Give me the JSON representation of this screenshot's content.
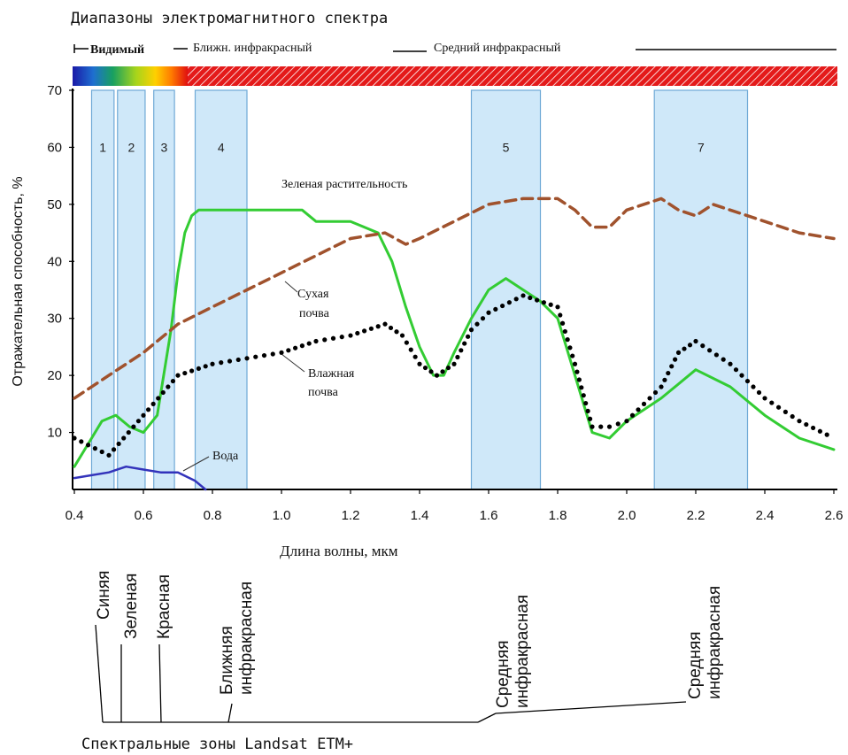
{
  "title": "Диапазоны электромагнитного спектра",
  "spectrum_ranges": [
    {
      "label": "Видимый"
    },
    {
      "label": "Ближн. инфракрасный"
    },
    {
      "label": "Средний инфракрасный"
    }
  ],
  "chart_data": {
    "type": "line",
    "xlabel": "Длина волны, мкм",
    "ylabel": "Отражательная способность, %",
    "xlim": [
      0.4,
      2.6
    ],
    "ylim": [
      0,
      70
    ],
    "x_ticks": [
      "0.4",
      "0.6",
      "0.8",
      "1.0",
      "1.2",
      "1.4",
      "1.6",
      "1.8",
      "2.0",
      "2.2",
      "2.4",
      "2.6"
    ],
    "y_ticks": [
      "10",
      "20",
      "30",
      "40",
      "50",
      "60",
      "70"
    ],
    "bands": [
      {
        "label": "1",
        "x0": 0.45,
        "x1": 0.515
      },
      {
        "label": "2",
        "x0": 0.525,
        "x1": 0.605
      },
      {
        "label": "3",
        "x0": 0.63,
        "x1": 0.69
      },
      {
        "label": "4",
        "x0": 0.75,
        "x1": 0.9
      },
      {
        "label": "5",
        "x0": 1.55,
        "x1": 1.75
      },
      {
        "label": "7",
        "x0": 2.08,
        "x1": 2.35
      }
    ],
    "series": [
      {
        "name": "Зеленая растительность",
        "color": "#33cc33",
        "x": [
          0.4,
          0.44,
          0.48,
          0.52,
          0.56,
          0.6,
          0.64,
          0.68,
          0.7,
          0.72,
          0.74,
          0.76,
          0.8,
          0.9,
          1.0,
          1.06,
          1.1,
          1.2,
          1.28,
          1.32,
          1.36,
          1.4,
          1.44,
          1.47,
          1.5,
          1.55,
          1.6,
          1.65,
          1.7,
          1.75,
          1.8,
          1.85,
          1.9,
          1.95,
          2.0,
          2.1,
          2.2,
          2.3,
          2.4,
          2.5,
          2.6
        ],
        "y": [
          4,
          8,
          12,
          13,
          11,
          10,
          13,
          28,
          38,
          45,
          48,
          49,
          49,
          49,
          49,
          49,
          47,
          47,
          45,
          40,
          32,
          25,
          20,
          20,
          24,
          30,
          35,
          37,
          35,
          33,
          30,
          20,
          10,
          9,
          12,
          16,
          21,
          18,
          13,
          9,
          7
        ]
      },
      {
        "name": "Сухая почва",
        "color": "#a0522d",
        "x": [
          0.4,
          0.5,
          0.6,
          0.7,
          0.8,
          0.9,
          1.0,
          1.1,
          1.2,
          1.3,
          1.36,
          1.4,
          1.5,
          1.6,
          1.7,
          1.8,
          1.85,
          1.9,
          1.95,
          2.0,
          2.1,
          2.15,
          2.2,
          2.25,
          2.3,
          2.4,
          2.5,
          2.6
        ],
        "y": [
          16,
          20,
          24,
          29,
          32,
          35,
          38,
          41,
          44,
          45,
          43,
          44,
          47,
          50,
          51,
          51,
          49,
          46,
          46,
          49,
          51,
          49,
          48,
          50,
          49,
          47,
          45,
          44
        ]
      },
      {
        "name": "Влажная почва",
        "color": "#000000",
        "x": [
          0.4,
          0.5,
          0.6,
          0.7,
          0.8,
          0.9,
          1.0,
          1.1,
          1.2,
          1.3,
          1.35,
          1.4,
          1.45,
          1.5,
          1.55,
          1.6,
          1.7,
          1.8,
          1.85,
          1.9,
          1.95,
          2.0,
          2.1,
          2.15,
          2.2,
          2.3,
          2.4,
          2.5,
          2.6
        ],
        "y": [
          9,
          6,
          13,
          20,
          22,
          23,
          24,
          26,
          27,
          29,
          27,
          22,
          20,
          22,
          28,
          31,
          34,
          32,
          22,
          11,
          11,
          12,
          18,
          24,
          26,
          22,
          16,
          12,
          9
        ]
      },
      {
        "name": "Вода",
        "color": "#3333bb",
        "x": [
          0.4,
          0.45,
          0.5,
          0.55,
          0.6,
          0.65,
          0.7,
          0.75,
          0.78
        ],
        "y": [
          2,
          2.5,
          3,
          4,
          3.5,
          3,
          3,
          1.5,
          0
        ]
      }
    ]
  },
  "curve_labels": {
    "veg": "Зеленая растительность",
    "dry": "Сухая почва",
    "wet": "Влажная почва",
    "water": "Вода"
  },
  "landsat_labels": [
    {
      "label": "Синяя"
    },
    {
      "label": "Зеленая"
    },
    {
      "label": "Красная"
    },
    {
      "label": "Ближняя инфракрасная"
    },
    {
      "label": "Средняя инфракрасная"
    },
    {
      "label": "Средняя инфракрасная"
    }
  ],
  "footer": "Спектральные зоны Landsat ETM+"
}
